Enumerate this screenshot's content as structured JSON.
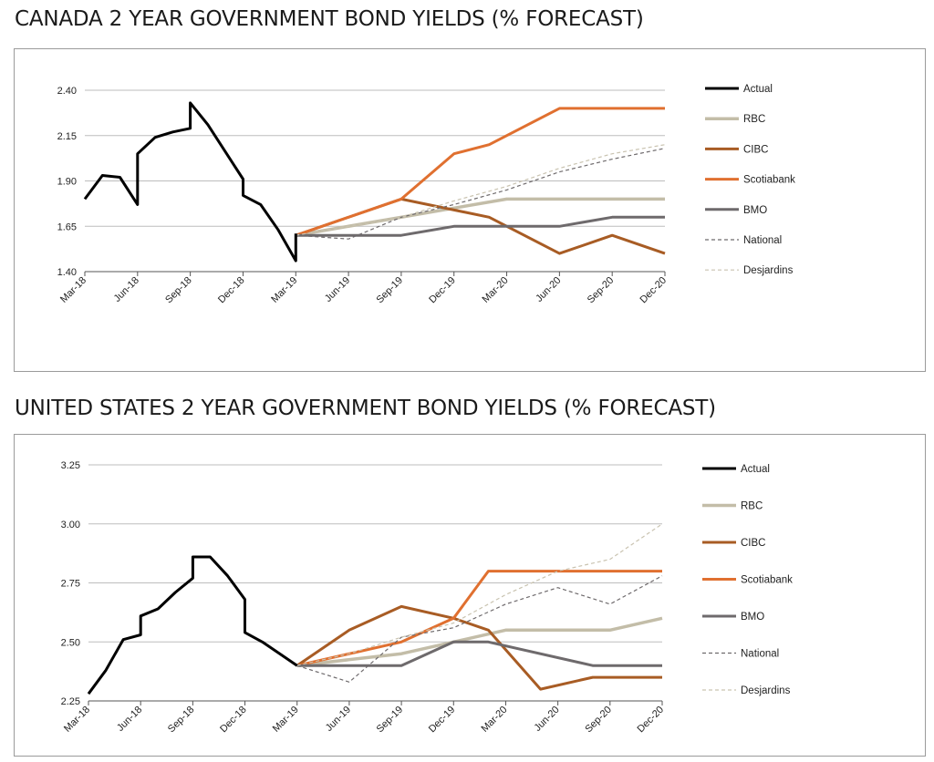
{
  "chart_data": [
    {
      "type": "line",
      "title": "CANADA 2 YEAR GOVERNMENT BOND YIELDS (% FORECAST)",
      "xlabel": "",
      "ylabel": "",
      "xlim": [
        "2018-03",
        "2020-12"
      ],
      "ylim": [
        1.4,
        2.4
      ],
      "yticks": [
        "2.40",
        "2.15",
        "1.90",
        "1.65",
        "1.40"
      ],
      "xticks": [
        "Mar-18",
        "Jun-18",
        "Sep-18",
        "Dec-18",
        "Mar-19",
        "Jun-19",
        "Sep-19",
        "Dec-19",
        "Mar-20",
        "Jun-20",
        "Sep-20",
        "Dec-20"
      ],
      "grid": true,
      "legend_position": "right",
      "series": [
        {
          "name": "Actual",
          "color": "#000000",
          "style": "solid",
          "width": 3,
          "x": [
            "2018-03",
            "2018-04",
            "2018-05",
            "2018-06",
            "2018-06",
            "2018-07",
            "2018-08",
            "2018-09",
            "2018-09",
            "2018-10",
            "2018-11",
            "2018-12",
            "2018-12",
            "2019-01",
            "2019-02",
            "2019-03",
            "2019-03"
          ],
          "y": [
            1.8,
            1.93,
            1.92,
            1.77,
            2.05,
            2.14,
            2.17,
            2.19,
            2.33,
            2.21,
            2.06,
            1.91,
            1.82,
            1.77,
            1.63,
            1.46,
            1.61
          ]
        },
        {
          "name": "RBC",
          "color": "#c3bda8",
          "style": "solid",
          "width": 3.5,
          "x": [
            "2019-03",
            "2019-09",
            "2019-12",
            "2020-03",
            "2020-06",
            "2020-09",
            "2020-12"
          ],
          "y": [
            1.6,
            1.7,
            1.75,
            1.8,
            1.8,
            1.8,
            1.8
          ]
        },
        {
          "name": "CIBC",
          "color": "#a85c24",
          "style": "solid",
          "width": 3,
          "x": [
            "2019-03",
            "2019-09",
            "2020-02",
            "2020-06",
            "2020-09",
            "2020-12"
          ],
          "y": [
            1.6,
            1.8,
            1.7,
            1.5,
            1.6,
            1.5
          ]
        },
        {
          "name": "Scotiabank",
          "color": "#e07030",
          "style": "solid",
          "width": 3,
          "x": [
            "2019-03",
            "2019-09",
            "2019-12",
            "2020-02",
            "2020-06",
            "2020-09",
            "2020-12"
          ],
          "y": [
            1.6,
            1.8,
            2.05,
            2.1,
            2.3,
            2.3,
            2.3
          ]
        },
        {
          "name": "BMO",
          "color": "#6e6a6c",
          "style": "solid",
          "width": 3,
          "x": [
            "2019-03",
            "2019-09",
            "2019-12",
            "2020-06",
            "2020-09",
            "2020-12"
          ],
          "y": [
            1.6,
            1.6,
            1.65,
            1.65,
            1.7,
            1.7
          ]
        },
        {
          "name": "National",
          "color": "#6e6a6c",
          "style": "dashed",
          "width": 1.2,
          "x": [
            "2019-03",
            "2019-06",
            "2019-09",
            "2019-12",
            "2020-03",
            "2020-06",
            "2020-09",
            "2020-12"
          ],
          "y": [
            1.6,
            1.58,
            1.7,
            1.77,
            1.85,
            1.95,
            2.02,
            2.08
          ]
        },
        {
          "name": "Desjardins",
          "color": "#c9c3b0",
          "style": "dashed",
          "width": 1.2,
          "x": [
            "2019-03",
            "2019-06",
            "2019-09",
            "2019-12",
            "2020-03",
            "2020-06",
            "2020-09",
            "2020-12"
          ],
          "y": [
            1.6,
            1.65,
            1.7,
            1.79,
            1.87,
            1.97,
            2.05,
            2.1
          ]
        }
      ]
    },
    {
      "type": "line",
      "title": "UNITED STATES 2 YEAR GOVERNMENT BOND YIELDS (% FORECAST)",
      "xlabel": "",
      "ylabel": "",
      "xlim": [
        "2018-03",
        "2020-12"
      ],
      "ylim": [
        2.25,
        3.25
      ],
      "yticks": [
        "3.25",
        "3.00",
        "2.75",
        "2.50",
        "2.25"
      ],
      "xticks": [
        "Mar-18",
        "Jun-18",
        "Sep-18",
        "Dec-18",
        "Mar-19",
        "Jun-19",
        "Sep-19",
        "Dec-19",
        "Mar-20",
        "Jun-20",
        "Sep-20",
        "Dec-20"
      ],
      "grid": true,
      "legend_position": "right",
      "series": [
        {
          "name": "Actual",
          "color": "#000000",
          "style": "solid",
          "width": 3,
          "x": [
            "2018-03",
            "2018-04",
            "2018-05",
            "2018-06",
            "2018-06",
            "2018-07",
            "2018-08",
            "2018-09",
            "2018-09",
            "2018-10",
            "2018-11",
            "2018-12",
            "2018-12",
            "2019-01",
            "2019-02",
            "2019-03"
          ],
          "y": [
            2.28,
            2.38,
            2.51,
            2.53,
            2.61,
            2.64,
            2.71,
            2.77,
            2.86,
            2.86,
            2.78,
            2.68,
            2.54,
            2.5,
            2.45,
            2.4
          ]
        },
        {
          "name": "RBC",
          "color": "#c3bda8",
          "style": "solid",
          "width": 3.5,
          "x": [
            "2019-03",
            "2019-09",
            "2019-12",
            "2020-03",
            "2020-06",
            "2020-09",
            "2020-12"
          ],
          "y": [
            2.4,
            2.45,
            2.5,
            2.55,
            2.55,
            2.55,
            2.6
          ]
        },
        {
          "name": "CIBC",
          "color": "#a85c24",
          "style": "solid",
          "width": 3,
          "x": [
            "2019-03",
            "2019-06",
            "2019-09",
            "2019-12",
            "2020-02",
            "2020-05",
            "2020-08",
            "2020-12"
          ],
          "y": [
            2.4,
            2.55,
            2.65,
            2.6,
            2.55,
            2.3,
            2.35,
            2.35
          ]
        },
        {
          "name": "Scotiabank",
          "color": "#e07030",
          "style": "solid",
          "width": 3,
          "x": [
            "2019-03",
            "2019-09",
            "2019-12",
            "2020-02",
            "2020-06",
            "2020-09",
            "2020-12"
          ],
          "y": [
            2.4,
            2.5,
            2.6,
            2.8,
            2.8,
            2.8,
            2.8
          ]
        },
        {
          "name": "BMO",
          "color": "#6e6a6c",
          "style": "solid",
          "width": 3,
          "x": [
            "2019-03",
            "2019-09",
            "2019-12",
            "2020-02",
            "2020-08",
            "2020-12"
          ],
          "y": [
            2.4,
            2.4,
            2.5,
            2.5,
            2.4,
            2.4
          ]
        },
        {
          "name": "National",
          "color": "#6e6a6c",
          "style": "dashed",
          "width": 1.2,
          "x": [
            "2019-03",
            "2019-06",
            "2019-09",
            "2019-12",
            "2020-03",
            "2020-06",
            "2020-09",
            "2020-12"
          ],
          "y": [
            2.4,
            2.33,
            2.52,
            2.56,
            2.66,
            2.73,
            2.66,
            2.78
          ]
        },
        {
          "name": "Desjardins",
          "color": "#c9c3b0",
          "style": "dashed",
          "width": 1.2,
          "x": [
            "2019-03",
            "2019-06",
            "2019-09",
            "2019-12",
            "2020-03",
            "2020-06",
            "2020-09",
            "2020-12"
          ],
          "y": [
            2.4,
            2.45,
            2.52,
            2.58,
            2.7,
            2.8,
            2.85,
            3.0
          ]
        }
      ]
    }
  ]
}
